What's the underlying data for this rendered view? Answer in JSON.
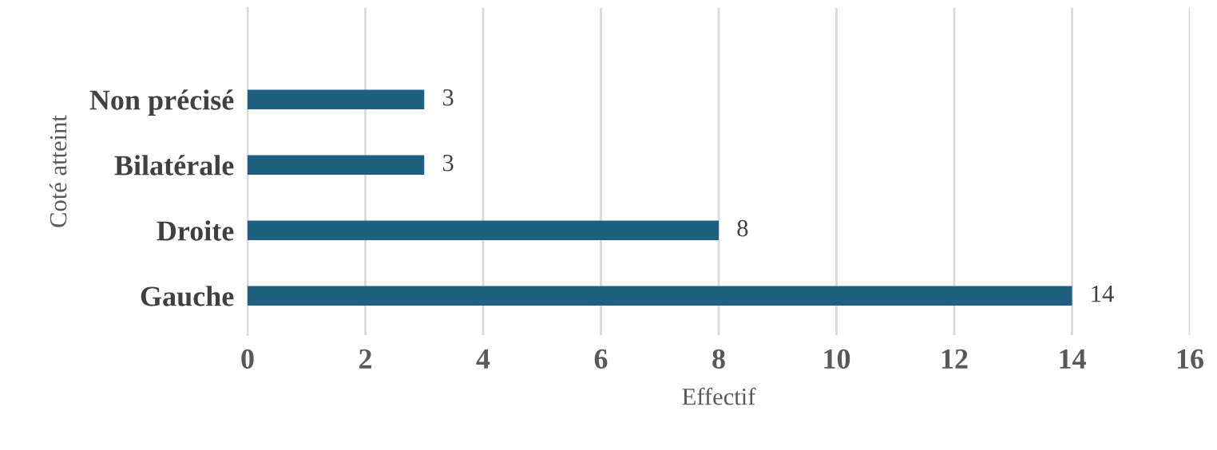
{
  "chart_data": {
    "type": "bar",
    "orientation": "horizontal",
    "xlabel": "Effectif",
    "ylabel": "Coté atteint",
    "categories": [
      "Non précisé",
      "Bilatérale",
      "Droite",
      "Gauche"
    ],
    "values": [
      3,
      3,
      8,
      14
    ],
    "color": "#1f5f7f",
    "data_labels": true,
    "xlim": [
      0,
      16
    ],
    "xticks": [
      0,
      2,
      4,
      6,
      8,
      10,
      12,
      14,
      16
    ],
    "grid": "x",
    "legend": false
  }
}
